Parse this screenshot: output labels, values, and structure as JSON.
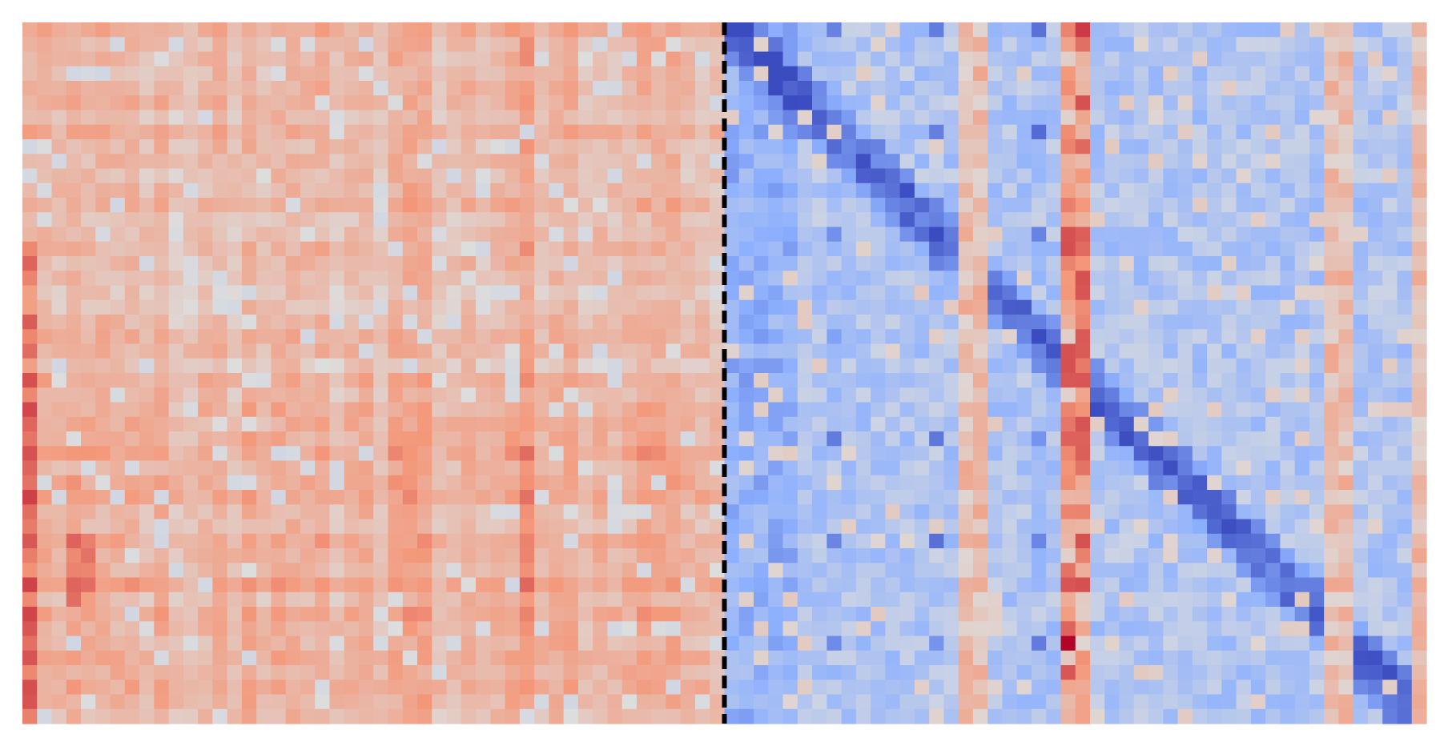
{
  "chart_data": {
    "type": "heatmap",
    "title": "",
    "xlabel": "",
    "ylabel": "",
    "n_rows": 48,
    "left_block": {
      "n_cols": 48,
      "tone": "warm",
      "value_range": [
        0.0,
        0.55
      ]
    },
    "right_block": {
      "n_cols": 48,
      "tone": "cool",
      "value_range": [
        -0.9,
        0.95
      ],
      "diagonal_band_cols_per_row": 1.0,
      "hot_columns": [
        23,
        24
      ],
      "warm_columns": [
        16,
        17,
        41,
        42,
        47
      ]
    },
    "divider": {
      "style": "dashed",
      "color": "#000000"
    },
    "colormap": {
      "name": "coolwarm",
      "stops": [
        {
          "v": -1.0,
          "color": "#3b4cc0"
        },
        {
          "v": -0.5,
          "color": "#8db0fe"
        },
        {
          "v": 0.0,
          "color": "#dddddd"
        },
        {
          "v": 0.5,
          "color": "#f4987a"
        },
        {
          "v": 1.0,
          "color": "#b40426"
        }
      ]
    },
    "grid": false,
    "legend": "none"
  }
}
